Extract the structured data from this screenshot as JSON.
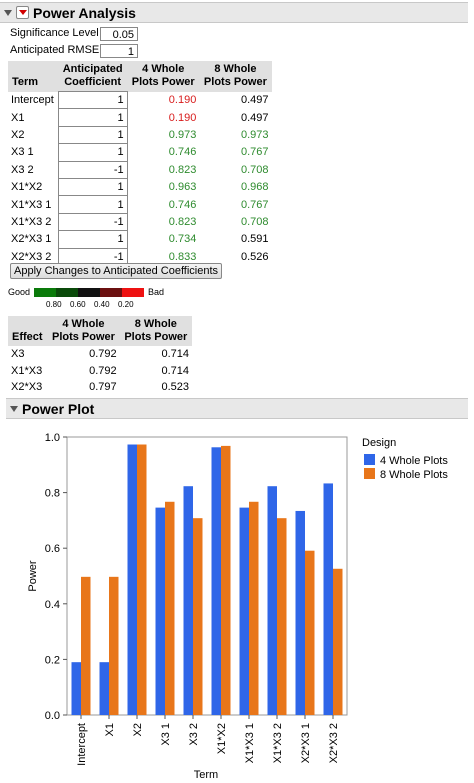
{
  "power_analysis": {
    "title": "Power Analysis",
    "significance_label": "Significance Level",
    "significance_value": "0.05",
    "rmse_label": "Anticipated RMSE",
    "rmse_value": "1",
    "table": {
      "headers": [
        "Term",
        "Anticipated Coefficient",
        "4 Whole Plots Power",
        "8 Whole Plots Power"
      ],
      "header_lines": [
        [
          "",
          "Term"
        ],
        [
          "Anticipated",
          "Coefficient"
        ],
        [
          "4 Whole",
          "Plots Power"
        ],
        [
          "8 Whole",
          "Plots Power"
        ]
      ],
      "rows": [
        {
          "term": "Intercept",
          "coef": "1",
          "p4": "0.190",
          "p8": "0.497",
          "c4": "red",
          "c8": "black"
        },
        {
          "term": "X1",
          "coef": "1",
          "p4": "0.190",
          "p8": "0.497",
          "c4": "red",
          "c8": "black"
        },
        {
          "term": "X2",
          "coef": "1",
          "p4": "0.973",
          "p8": "0.973",
          "c4": "green",
          "c8": "green"
        },
        {
          "term": "X3 1",
          "coef": "1",
          "p4": "0.746",
          "p8": "0.767",
          "c4": "green",
          "c8": "green"
        },
        {
          "term": "X3 2",
          "coef": "-1",
          "p4": "0.823",
          "p8": "0.708",
          "c4": "green",
          "c8": "green"
        },
        {
          "term": "X1*X2",
          "coef": "1",
          "p4": "0.963",
          "p8": "0.968",
          "c4": "green",
          "c8": "green"
        },
        {
          "term": "X1*X3 1",
          "coef": "1",
          "p4": "0.746",
          "p8": "0.767",
          "c4": "green",
          "c8": "green"
        },
        {
          "term": "X1*X3 2",
          "coef": "-1",
          "p4": "0.823",
          "p8": "0.708",
          "c4": "green",
          "c8": "green"
        },
        {
          "term": "X2*X3 1",
          "coef": "1",
          "p4": "0.734",
          "p8": "0.591",
          "c4": "green",
          "c8": "black"
        },
        {
          "term": "X2*X3 2",
          "coef": "-1",
          "p4": "0.833",
          "p8": "0.526",
          "c4": "green",
          "c8": "black"
        }
      ]
    },
    "apply_button": "Apply Changes to Anticipated Coefficients",
    "color_legend": {
      "good": "Good",
      "bad": "Bad",
      "ticks": [
        "0.80",
        "0.60",
        "0.40",
        "0.20"
      ],
      "colors": [
        "#0a7a0a",
        "#0a4a0a",
        "#111111",
        "#6b1010",
        "#ee1111"
      ]
    },
    "effect_table": {
      "header_lines": [
        [
          "",
          "Effect"
        ],
        [
          "4 Whole",
          "Plots Power"
        ],
        [
          "8 Whole",
          "Plots Power"
        ]
      ],
      "rows": [
        {
          "effect": "X3",
          "p4": "0.792",
          "p8": "0.714"
        },
        {
          "effect": "X1*X3",
          "p4": "0.792",
          "p8": "0.714"
        },
        {
          "effect": "X2*X3",
          "p4": "0.797",
          "p8": "0.523"
        }
      ]
    }
  },
  "power_plot": {
    "title": "Power Plot"
  },
  "chart_data": {
    "type": "bar",
    "categories": [
      "Intercept",
      "X1",
      "X2",
      "X3 1",
      "X3 2",
      "X1*X2",
      "X1*X3 1",
      "X1*X3 2",
      "X2*X3 1",
      "X2*X3 2"
    ],
    "series": [
      {
        "name": "4 Whole Plots",
        "color": "#2f66e8",
        "values": [
          0.19,
          0.19,
          0.973,
          0.746,
          0.823,
          0.963,
          0.746,
          0.823,
          0.734,
          0.833
        ]
      },
      {
        "name": "8 Whole Plots",
        "color": "#e8761a",
        "values": [
          0.497,
          0.497,
          0.973,
          0.767,
          0.708,
          0.968,
          0.767,
          0.708,
          0.591,
          0.526
        ]
      }
    ],
    "xlabel": "Term",
    "ylabel": "Power",
    "ylim": [
      0,
      1
    ],
    "yticks": [
      "0.0",
      "0.2",
      "0.4",
      "0.6",
      "0.8",
      "1.0"
    ],
    "legend_title": "Design",
    "legend_position": "top-right",
    "grid": false
  }
}
